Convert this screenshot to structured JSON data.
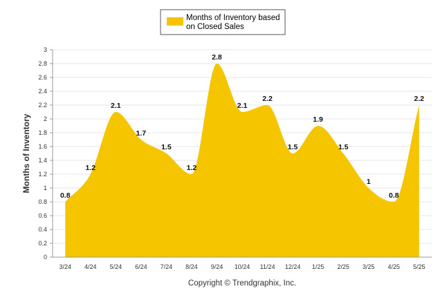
{
  "chart_data": {
    "type": "area",
    "categories": [
      "3/24",
      "4/24",
      "5/24",
      "6/24",
      "7/24",
      "8/24",
      "9/24",
      "10/24",
      "11/24",
      "12/24",
      "1/25",
      "2/25",
      "3/25",
      "4/25",
      "5/25"
    ],
    "series": [
      {
        "name": "Months of Inventory based on Closed Sales",
        "values": [
          0.8,
          1.2,
          2.1,
          1.7,
          1.5,
          1.2,
          2.8,
          2.1,
          2.2,
          1.5,
          1.9,
          1.5,
          1,
          0.8,
          2.2
        ],
        "labels": [
          "0.8",
          "1.2",
          "2.1",
          "1.7",
          "1.5",
          "1.2",
          "2.8",
          "2.1",
          "2.2",
          "1.5",
          "1.9",
          "1.5",
          "1",
          "0.8",
          "2.2"
        ]
      }
    ],
    "ylabel": "Months of Inventory",
    "ylim": [
      0,
      3
    ],
    "yticks": [
      "0",
      "0.2",
      "0.4",
      "0.6",
      "0.8",
      "1",
      "1.2",
      "1.4",
      "1.6",
      "1.8",
      "2",
      "2.2",
      "2.4",
      "2.6",
      "2.8",
      "3"
    ],
    "legend": {
      "lines": [
        "Months of Inventory based",
        "on Closed Sales"
      ],
      "position": "top"
    },
    "grid": true,
    "colors": {
      "fill": "#f5c500",
      "grid": "#e6e6e6",
      "axis": "#999999"
    }
  },
  "footer": {
    "copyright": "Copyright © Trendgraphix, Inc."
  }
}
